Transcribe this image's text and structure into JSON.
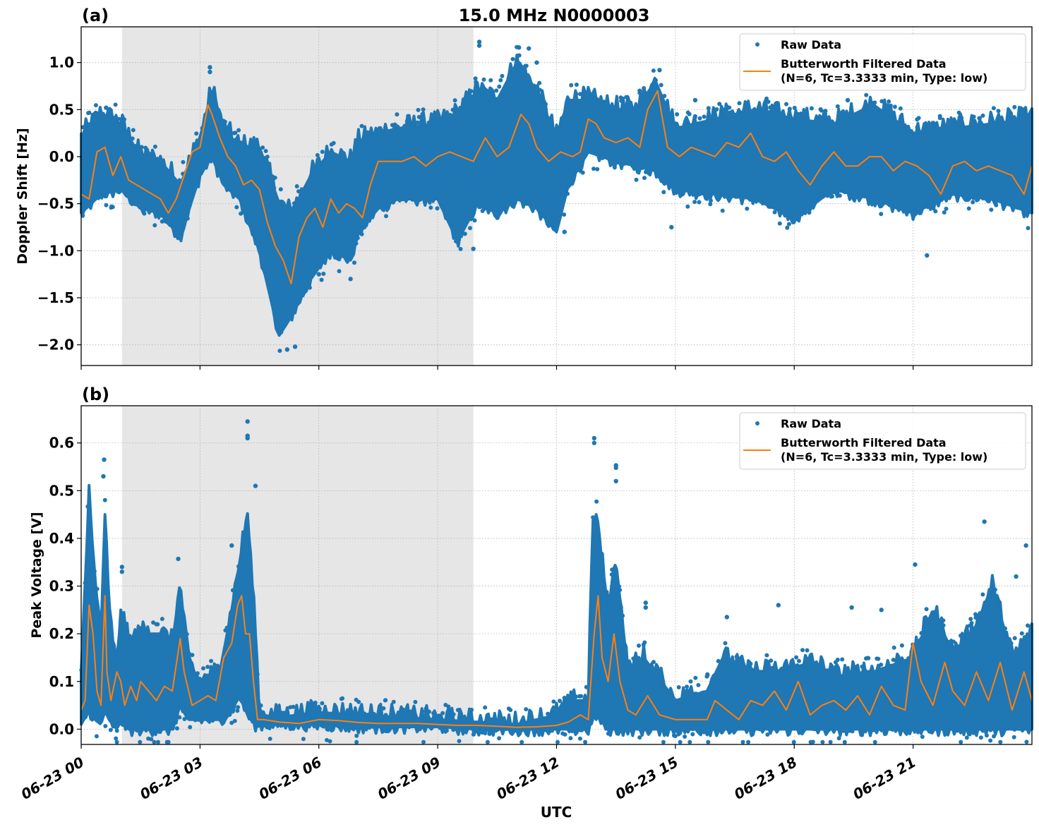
{
  "chart_data": [
    {
      "type": "scatter",
      "panel_label": "(a)",
      "title": "15.0 MHz N0000003",
      "xlabel": "",
      "ylabel": "Doppler Shift [Hz]",
      "xlim_hours": [
        0,
        24
      ],
      "ylim": [
        -2.22,
        1.38
      ],
      "yticks": [
        1.0,
        0.5,
        0.0,
        -0.5,
        -1.0,
        -1.5,
        -2.0
      ],
      "ytick_labels": [
        "1.0",
        "0.5",
        "0.0",
        "−0.5",
        "−1.0",
        "−1.5",
        "−2.0"
      ],
      "grid": true,
      "legend_position": "top-right",
      "shaded_region_hours": [
        1.03,
        9.9
      ],
      "series": [
        {
          "name": "Raw Data",
          "style": "markers",
          "color": "#1f77b4",
          "envelope_hours": [
            0,
            0.5,
            1,
            1.5,
            2,
            2.5,
            3,
            3.3,
            3.6,
            4,
            4.5,
            5,
            5.3,
            5.8,
            6.3,
            6.8,
            7,
            7.5,
            8,
            9,
            9.5,
            10,
            10.5,
            11,
            11.5,
            12,
            12.3,
            12.8,
            13.5,
            14,
            14.5,
            15,
            16,
            17,
            18,
            19,
            20,
            21,
            22,
            23,
            24
          ],
          "envelope_low": [
            -0.6,
            -0.4,
            -0.35,
            -0.55,
            -0.6,
            -0.85,
            -0.2,
            0.0,
            -0.3,
            -0.45,
            -1.0,
            -1.9,
            -1.7,
            -1.3,
            -1.0,
            -1.1,
            -0.8,
            -0.55,
            -0.45,
            -0.45,
            -0.9,
            -0.5,
            -0.6,
            -0.45,
            -0.55,
            -0.8,
            -0.3,
            0.05,
            -0.05,
            -0.1,
            -0.15,
            -0.35,
            -0.4,
            -0.45,
            -0.65,
            -0.35,
            -0.45,
            -0.6,
            -0.4,
            -0.45,
            -0.6
          ],
          "envelope_high": [
            0.2,
            0.45,
            0.35,
            0.0,
            -0.05,
            -0.3,
            0.2,
            0.7,
            0.3,
            0.1,
            0.1,
            -0.5,
            -0.6,
            -0.2,
            0.05,
            -0.05,
            0.15,
            0.25,
            0.3,
            0.35,
            0.45,
            0.7,
            0.6,
            1.0,
            0.7,
            0.2,
            0.6,
            0.6,
            0.5,
            0.5,
            0.8,
            0.3,
            0.4,
            0.5,
            0.4,
            0.35,
            0.55,
            0.25,
            0.3,
            0.35,
            0.4
          ],
          "outliers": [
            [
              0.63,
              0.52
            ],
            [
              3.25,
              0.95
            ],
            [
              3.25,
              0.9
            ],
            [
              5.2,
              -2.05
            ],
            [
              5.4,
              -2.02
            ],
            [
              10.05,
              1.22
            ],
            [
              10.05,
              1.18
            ],
            [
              11.05,
              1.16
            ],
            [
              11.3,
              1.15
            ],
            [
              11.5,
              1.0
            ],
            [
              14.1,
              0.7
            ],
            [
              14.6,
              0.92
            ],
            [
              14.9,
              -0.75
            ],
            [
              21.35,
              -1.05
            ],
            [
              19.35,
              0.6
            ],
            [
              6.0,
              -1.25
            ],
            [
              6.8,
              -1.3
            ],
            [
              9.9,
              -0.98
            ],
            [
              12.2,
              -0.8
            ],
            [
              15.5,
              0.6
            ],
            [
              17.0,
              0.35
            ],
            [
              23.8,
              0.5
            ]
          ]
        },
        {
          "name": "Butterworth Filtered Data\n(N=6, Tc=3.3333 min, Type: low)",
          "style": "line",
          "color": "#ff7f0e",
          "x_hours": [
            0,
            0.2,
            0.4,
            0.6,
            0.8,
            1.0,
            1.2,
            1.4,
            1.6,
            1.8,
            2.0,
            2.2,
            2.4,
            2.6,
            2.8,
            3.0,
            3.2,
            3.3,
            3.5,
            3.7,
            3.9,
            4.1,
            4.3,
            4.5,
            4.7,
            4.9,
            5.1,
            5.3,
            5.5,
            5.7,
            5.9,
            6.1,
            6.3,
            6.5,
            6.7,
            6.9,
            7.1,
            7.3,
            7.5,
            7.8,
            8.1,
            8.4,
            8.7,
            9.0,
            9.3,
            9.6,
            9.9,
            10.2,
            10.5,
            10.8,
            11.1,
            11.3,
            11.5,
            11.8,
            12.1,
            12.4,
            12.6,
            12.8,
            13.0,
            13.2,
            13.5,
            13.8,
            14.1,
            14.3,
            14.55,
            14.8,
            15.1,
            15.4,
            15.7,
            16.0,
            16.3,
            16.6,
            16.9,
            17.2,
            17.5,
            17.8,
            18.1,
            18.4,
            18.7,
            19.0,
            19.3,
            19.6,
            19.9,
            20.2,
            20.5,
            20.8,
            21.1,
            21.4,
            21.7,
            22.0,
            22.3,
            22.6,
            22.9,
            23.2,
            23.5,
            23.8,
            24.0
          ],
          "y": [
            -0.4,
            -0.45,
            0.05,
            0.1,
            -0.2,
            0.0,
            -0.25,
            -0.3,
            -0.35,
            -0.4,
            -0.45,
            -0.6,
            -0.45,
            -0.2,
            0.05,
            0.1,
            0.55,
            0.45,
            0.2,
            0.0,
            -0.1,
            -0.3,
            -0.25,
            -0.35,
            -0.7,
            -0.95,
            -1.1,
            -1.35,
            -0.85,
            -0.65,
            -0.55,
            -0.75,
            -0.45,
            -0.6,
            -0.5,
            -0.55,
            -0.65,
            -0.3,
            -0.05,
            -0.05,
            -0.05,
            0.0,
            -0.1,
            0.0,
            0.05,
            0.0,
            -0.05,
            0.2,
            0.0,
            0.1,
            0.45,
            0.35,
            0.1,
            -0.05,
            0.05,
            0.0,
            0.05,
            0.4,
            0.35,
            0.2,
            0.15,
            0.2,
            0.1,
            0.5,
            0.7,
            0.1,
            0.0,
            0.1,
            0.05,
            0.0,
            0.15,
            0.1,
            0.25,
            0.0,
            -0.05,
            0.05,
            -0.15,
            -0.3,
            -0.1,
            0.05,
            -0.1,
            -0.1,
            0.0,
            0.0,
            -0.15,
            -0.05,
            -0.1,
            -0.2,
            -0.4,
            -0.1,
            -0.05,
            -0.15,
            -0.1,
            -0.15,
            -0.2,
            -0.4,
            -0.1
          ]
        }
      ]
    },
    {
      "type": "scatter",
      "panel_label": "(b)",
      "title": "",
      "xlabel": "UTC",
      "ylabel": "Peak Voltage [V]",
      "xlim_hours": [
        0,
        24
      ],
      "ylim": [
        -0.032,
        0.678
      ],
      "yticks": [
        0.6,
        0.5,
        0.4,
        0.3,
        0.2,
        0.1,
        0.0
      ],
      "ytick_labels": [
        "0.6",
        "0.5",
        "0.4",
        "0.3",
        "0.2",
        "0.1",
        "0.0"
      ],
      "xticks_hours": [
        0,
        3,
        6,
        9,
        12,
        15,
        18,
        21
      ],
      "xtick_labels": [
        "06-23 00",
        "06-23 03",
        "06-23 06",
        "06-23 09",
        "06-23 12",
        "06-23 15",
        "06-23 18",
        "06-23 21"
      ],
      "grid": true,
      "legend_position": "top-right",
      "shaded_region_hours": [
        1.03,
        9.9
      ],
      "series": [
        {
          "name": "Raw Data",
          "style": "markers",
          "color": "#1f77b4",
          "envelope_hours": [
            0,
            0.2,
            0.35,
            0.5,
            0.6,
            0.7,
            0.9,
            1.0,
            1.2,
            1.5,
            2.0,
            2.3,
            2.5,
            2.7,
            3.0,
            3.5,
            3.8,
            4.0,
            4.2,
            4.4,
            4.5,
            5.0,
            6.0,
            7.0,
            8.0,
            9.0,
            10.0,
            11.0,
            11.5,
            12.0,
            12.5,
            12.8,
            12.9,
            13.0,
            13.3,
            13.5,
            13.8,
            14.2,
            15.0,
            15.8,
            16.2,
            16.8,
            17.5,
            18.5,
            19.0,
            20.0,
            21.0,
            21.5,
            22.0,
            22.5,
            23.0,
            23.5,
            24.0
          ],
          "envelope_low": [
            0.01,
            0.04,
            0.02,
            0.01,
            0.04,
            0.02,
            0.0,
            0.02,
            0.0,
            0.0,
            0.0,
            0.0,
            0.05,
            0.02,
            0.02,
            0.02,
            0.04,
            0.07,
            0.03,
            0.01,
            0.01,
            0.01,
            0.01,
            0.005,
            0.005,
            0.005,
            0.0,
            0.0,
            0.0,
            0.0,
            0.0,
            0.0,
            0.02,
            0.03,
            0.0,
            0.0,
            0.0,
            0.0,
            0.0,
            0.0,
            0.0,
            0.0,
            0.0,
            0.0,
            0.0,
            0.0,
            0.0,
            0.0,
            0.0,
            0.0,
            0.0,
            0.0,
            0.0
          ],
          "envelope_high": [
            0.1,
            0.5,
            0.3,
            0.2,
            0.45,
            0.25,
            0.12,
            0.25,
            0.18,
            0.2,
            0.2,
            0.18,
            0.3,
            0.14,
            0.1,
            0.12,
            0.25,
            0.35,
            0.45,
            0.2,
            0.03,
            0.025,
            0.035,
            0.03,
            0.025,
            0.02,
            0.015,
            0.01,
            0.02,
            0.03,
            0.06,
            0.06,
            0.4,
            0.45,
            0.25,
            0.35,
            0.12,
            0.15,
            0.06,
            0.08,
            0.15,
            0.12,
            0.12,
            0.14,
            0.11,
            0.12,
            0.15,
            0.25,
            0.16,
            0.2,
            0.3,
            0.15,
            0.2
          ],
          "outliers": [
            [
              0.58,
              0.565
            ],
            [
              0.56,
              0.53
            ],
            [
              3.8,
              0.385
            ],
            [
              4.2,
              0.645
            ],
            [
              4.2,
              0.615
            ],
            [
              4.2,
              0.61
            ],
            [
              4.4,
              0.51
            ],
            [
              1.03,
              0.34
            ],
            [
              1.03,
              0.33
            ],
            [
              2.45,
              0.357
            ],
            [
              12.95,
              0.61
            ],
            [
              12.95,
              0.6
            ],
            [
              13.5,
              0.553
            ],
            [
              13.5,
              0.548
            ],
            [
              13.5,
              0.52
            ],
            [
              14.25,
              0.265
            ],
            [
              14.25,
              0.255
            ],
            [
              16.3,
              0.235
            ],
            [
              17.6,
              0.26
            ],
            [
              19.45,
              0.255
            ],
            [
              20.2,
              0.25
            ],
            [
              21.05,
              0.345
            ],
            [
              22.8,
              0.435
            ],
            [
              23.85,
              0.385
            ],
            [
              23.6,
              0.32
            ]
          ]
        },
        {
          "name": "Butterworth Filtered Data\n(N=6, Tc=3.3333 min, Type: low)",
          "style": "line",
          "color": "#ff7f0e",
          "x_hours": [
            0,
            0.1,
            0.2,
            0.3,
            0.4,
            0.5,
            0.6,
            0.65,
            0.75,
            0.9,
            1.0,
            1.1,
            1.25,
            1.4,
            1.5,
            1.7,
            1.9,
            2.1,
            2.3,
            2.5,
            2.6,
            2.8,
            3.0,
            3.2,
            3.4,
            3.6,
            3.8,
            3.95,
            4.05,
            4.15,
            4.25,
            4.35,
            4.45,
            4.6,
            5.0,
            5.5,
            6.0,
            6.5,
            7.0,
            7.5,
            8.0,
            8.5,
            9.0,
            9.5,
            10.0,
            10.5,
            11.0,
            11.5,
            12.0,
            12.3,
            12.6,
            12.8,
            12.95,
            13.05,
            13.15,
            13.3,
            13.45,
            13.6,
            13.8,
            14.0,
            14.3,
            14.6,
            15.0,
            15.4,
            15.8,
            16.0,
            16.3,
            16.6,
            16.9,
            17.2,
            17.5,
            17.8,
            18.1,
            18.4,
            18.7,
            19.0,
            19.3,
            19.6,
            19.9,
            20.2,
            20.5,
            20.8,
            21.0,
            21.2,
            21.5,
            21.8,
            22.0,
            22.3,
            22.6,
            22.9,
            23.2,
            23.5,
            23.8,
            24.0
          ],
          "y": [
            0.04,
            0.06,
            0.26,
            0.2,
            0.08,
            0.05,
            0.28,
            0.12,
            0.06,
            0.12,
            0.1,
            0.05,
            0.09,
            0.06,
            0.1,
            0.08,
            0.06,
            0.09,
            0.08,
            0.19,
            0.12,
            0.05,
            0.06,
            0.07,
            0.06,
            0.15,
            0.18,
            0.26,
            0.28,
            0.2,
            0.2,
            0.1,
            0.02,
            0.02,
            0.015,
            0.012,
            0.02,
            0.018,
            0.014,
            0.012,
            0.012,
            0.012,
            0.01,
            0.008,
            0.008,
            0.006,
            0.004,
            0.005,
            0.008,
            0.015,
            0.03,
            0.02,
            0.2,
            0.28,
            0.15,
            0.1,
            0.2,
            0.1,
            0.04,
            0.03,
            0.07,
            0.03,
            0.02,
            0.02,
            0.02,
            0.06,
            0.04,
            0.02,
            0.06,
            0.05,
            0.08,
            0.04,
            0.1,
            0.03,
            0.05,
            0.06,
            0.04,
            0.07,
            0.03,
            0.09,
            0.05,
            0.04,
            0.18,
            0.1,
            0.05,
            0.14,
            0.08,
            0.05,
            0.12,
            0.06,
            0.14,
            0.04,
            0.12,
            0.06
          ]
        }
      ]
    }
  ],
  "legend": {
    "raw_label": "Raw Data",
    "filtered_label_line1": "Butterworth Filtered Data",
    "filtered_label_line2": "(N=6, Tc=3.3333 min, Type: low)"
  },
  "colors": {
    "raw": "#1f77b4",
    "filtered": "#ff7f0e",
    "shade": "#e6e6e6",
    "grid": "#b0b0b0"
  }
}
